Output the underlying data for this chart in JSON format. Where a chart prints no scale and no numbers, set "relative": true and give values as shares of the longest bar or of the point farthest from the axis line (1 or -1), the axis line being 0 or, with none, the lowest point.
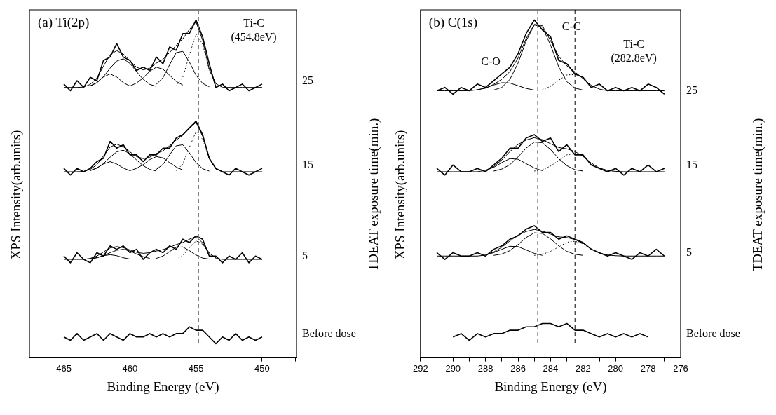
{
  "chart_data": [
    {
      "type": "line",
      "title": "(a) Ti(2p)",
      "xlabel": "Binding Energy (eV)",
      "ylabel": "XPS Intensity(arb.units)",
      "y2label": "TDEAT exposure time(min.)",
      "relative": true,
      "xlim": [
        467.6,
        447.4
      ],
      "xticks": [
        465,
        {
          "value": 462.5,
          "label": null
        },
        460,
        {
          "value": 457.5,
          "label": null
        },
        455,
        {
          "value": 452.5,
          "label": null
        },
        450,
        {
          "value": 447.5,
          "label": null
        }
      ],
      "x": [
        465,
        464.5,
        464,
        463.5,
        463,
        462.5,
        462,
        461.5,
        461,
        460.5,
        460,
        459.5,
        459,
        458.5,
        458,
        457.5,
        457,
        456.5,
        456,
        455.5,
        455,
        454.5,
        454,
        453.5,
        453,
        452.5,
        452,
        451.5,
        451,
        450.5,
        450
      ],
      "series": [
        {
          "name": "25",
          "color": "#000000",
          "values": [
            0.81,
            0.79,
            0.82,
            0.8,
            0.83,
            0.82,
            0.88,
            0.89,
            0.93,
            0.89,
            0.88,
            0.85,
            0.86,
            0.85,
            0.89,
            0.87,
            0.92,
            0.91,
            0.96,
            0.96,
            1.0,
            0.95,
            0.87,
            0.8,
            0.81,
            0.79,
            0.8,
            0.81,
            0.79,
            0.8,
            0.81
          ]
        },
        {
          "color": "#000000",
          "values": [
            0.8,
            0.8,
            0.8,
            0.801,
            0.809,
            0.828,
            0.863,
            0.897,
            0.909,
            0.899,
            0.879,
            0.86,
            0.852,
            0.857,
            0.872,
            0.883,
            0.903,
            0.925,
            0.944,
            0.972,
            0.994,
            0.94,
            0.854,
            0.811,
            0.8,
            0.8,
            0.8,
            0.8,
            0.8,
            0.8,
            0.8
          ]
        },
        {
          "color": "#000000",
          "values": [
            null,
            null,
            null,
            null,
            0.804,
            0.814,
            0.831,
            0.84,
            0.831,
            0.814,
            0.804,
            null,
            null,
            null,
            null,
            null,
            null,
            null,
            null,
            null,
            null,
            null,
            null,
            null,
            null,
            null,
            null,
            null,
            null,
            null,
            null
          ]
        },
        {
          "color": "#000000",
          "values": [
            null,
            null,
            null,
            null,
            0.805,
            0.814,
            0.832,
            0.857,
            0.878,
            0.885,
            0.871,
            0.847,
            0.824,
            0.809,
            0.803,
            null,
            null,
            null,
            null,
            null,
            null,
            null,
            null,
            null,
            null,
            null,
            null,
            null,
            null,
            null,
            null
          ]
        },
        {
          "color": "#000000",
          "values": [
            null,
            null,
            null,
            null,
            null,
            null,
            null,
            null,
            null,
            null,
            0.804,
            0.813,
            0.828,
            0.848,
            0.86,
            0.854,
            0.836,
            0.818,
            0.807,
            null,
            null,
            null,
            null,
            null,
            null,
            null,
            null,
            null,
            null,
            null,
            null
          ]
        },
        {
          "color": "#000000",
          "values": [
            null,
            null,
            null,
            null,
            null,
            null,
            null,
            null,
            null,
            null,
            null,
            null,
            null,
            null,
            0.809,
            0.829,
            0.867,
            0.903,
            0.907,
            0.875,
            0.836,
            0.812,
            0.802,
            null,
            null,
            null,
            null,
            null,
            null,
            null,
            null
          ]
        },
        {
          "color": "#000000",
          "line_style": "dotted",
          "values": [
            null,
            null,
            null,
            null,
            null,
            null,
            null,
            null,
            null,
            null,
            null,
            null,
            null,
            null,
            null,
            null,
            null,
            0.804,
            0.83,
            0.897,
            0.958,
            0.928,
            0.852,
            0.811,
            null,
            null,
            null,
            null,
            null,
            null,
            null
          ]
        },
        {
          "name": "15",
          "color": "#000000",
          "values": [
            0.56,
            0.54,
            0.56,
            0.55,
            0.56,
            0.58,
            0.59,
            0.64,
            0.62,
            0.63,
            0.6,
            0.6,
            0.58,
            0.6,
            0.6,
            0.62,
            0.62,
            0.65,
            0.66,
            0.68,
            0.7,
            0.66,
            0.59,
            0.56,
            0.55,
            0.54,
            0.56,
            0.55,
            0.54,
            0.55,
            0.56
          ]
        },
        {
          "color": "#000000",
          "values": [
            0.55,
            0.55,
            0.55,
            0.551,
            0.557,
            0.571,
            0.597,
            0.623,
            0.632,
            0.624,
            0.609,
            0.595,
            0.589,
            0.593,
            0.604,
            0.612,
            0.627,
            0.644,
            0.658,
            0.679,
            0.696,
            0.655,
            0.591,
            0.558,
            0.55,
            0.55,
            0.55,
            0.55,
            0.55,
            0.55,
            0.55
          ]
        },
        {
          "color": "#000000",
          "values": [
            null,
            null,
            null,
            null,
            0.553,
            0.561,
            0.573,
            0.58,
            0.573,
            0.561,
            0.553,
            null,
            null,
            null,
            null,
            null,
            null,
            null,
            null,
            null,
            null,
            null,
            null,
            null,
            null,
            null,
            null,
            null,
            null,
            null,
            null
          ]
        },
        {
          "color": "#000000",
          "values": [
            null,
            null,
            null,
            null,
            0.554,
            0.561,
            0.574,
            0.593,
            0.609,
            0.614,
            0.603,
            0.585,
            0.568,
            0.557,
            0.552,
            null,
            null,
            null,
            null,
            null,
            null,
            null,
            null,
            null,
            null,
            null,
            null,
            null,
            null,
            null,
            null
          ]
        },
        {
          "color": "#000000",
          "values": [
            null,
            null,
            null,
            null,
            null,
            null,
            null,
            null,
            null,
            null,
            0.553,
            0.56,
            0.571,
            0.586,
            0.595,
            0.591,
            0.577,
            0.564,
            0.555,
            null,
            null,
            null,
            null,
            null,
            null,
            null,
            null,
            null,
            null,
            null,
            null
          ]
        },
        {
          "color": "#000000",
          "values": [
            null,
            null,
            null,
            null,
            null,
            null,
            null,
            null,
            null,
            null,
            null,
            null,
            null,
            null,
            0.557,
            0.572,
            0.6,
            0.627,
            0.63,
            0.606,
            0.577,
            0.559,
            0.552,
            null,
            null,
            null,
            null,
            null,
            null,
            null,
            null
          ]
        },
        {
          "color": "#000000",
          "line_style": "dotted",
          "values": [
            null,
            null,
            null,
            null,
            null,
            null,
            null,
            null,
            null,
            null,
            null,
            null,
            null,
            null,
            null,
            null,
            null,
            0.553,
            0.573,
            0.623,
            0.669,
            0.646,
            0.589,
            0.558,
            null,
            null,
            null,
            null,
            null,
            null,
            null
          ]
        },
        {
          "name": "5",
          "color": "#000000",
          "values": [
            0.3,
            0.28,
            0.31,
            0.29,
            0.28,
            0.31,
            0.3,
            0.33,
            0.32,
            0.33,
            0.31,
            0.32,
            0.29,
            0.31,
            0.32,
            0.31,
            0.33,
            0.32,
            0.35,
            0.34,
            0.36,
            0.35,
            0.3,
            0.3,
            0.28,
            0.3,
            0.29,
            0.31,
            0.28,
            0.3,
            0.29
          ]
        },
        {
          "color": "#000000",
          "values": [
            0.29,
            0.29,
            0.29,
            0.29,
            0.293,
            0.3,
            0.312,
            0.324,
            0.328,
            0.325,
            0.318,
            0.311,
            0.308,
            0.31,
            0.315,
            0.319,
            0.326,
            0.334,
            0.34,
            0.35,
            0.358,
            0.339,
            0.309,
            0.294,
            0.29,
            0.29,
            0.29,
            0.29,
            0.29,
            0.29,
            0.29
          ]
        },
        {
          "color": "#000000",
          "values": [
            null,
            null,
            null,
            null,
            0.291,
            0.295,
            0.301,
            0.304,
            0.301,
            0.295,
            0.291,
            null,
            null,
            null,
            null,
            null,
            null,
            null,
            null,
            null,
            null,
            null,
            null,
            null,
            null,
            null,
            null,
            null,
            null,
            null,
            null
          ]
        },
        {
          "color": "#000000",
          "values": [
            null,
            null,
            null,
            null,
            0.292,
            0.295,
            0.301,
            0.31,
            0.317,
            0.32,
            0.315,
            0.306,
            0.298,
            0.293,
            null,
            null,
            null,
            null,
            null,
            null,
            null,
            null,
            null,
            null,
            null,
            null,
            null,
            null,
            null,
            null,
            null
          ]
        },
        {
          "color": "#000000",
          "values": [
            null,
            null,
            null,
            null,
            null,
            null,
            null,
            null,
            null,
            null,
            null,
            null,
            null,
            null,
            0.293,
            0.3,
            0.313,
            0.326,
            0.327,
            0.316,
            0.303,
            0.294,
            0.291,
            null,
            null,
            null,
            null,
            null,
            null,
            null,
            null
          ]
        },
        {
          "color": "#000000",
          "line_style": "dotted",
          "values": [
            null,
            null,
            null,
            null,
            null,
            null,
            null,
            null,
            null,
            null,
            null,
            null,
            null,
            null,
            null,
            null,
            null,
            0.291,
            0.301,
            0.324,
            0.345,
            0.335,
            0.308,
            0.294,
            null,
            null,
            null,
            null,
            null,
            null,
            null
          ]
        },
        {
          "name": "Before dose",
          "color": "#000000",
          "values": [
            0.06,
            0.05,
            0.07,
            0.05,
            0.06,
            0.07,
            0.05,
            0.07,
            0.06,
            0.05,
            0.07,
            0.06,
            0.06,
            0.07,
            0.06,
            0.07,
            0.06,
            0.07,
            0.07,
            0.09,
            0.08,
            0.08,
            0.06,
            0.04,
            0.06,
            0.05,
            0.07,
            0.05,
            0.06,
            0.05,
            0.06
          ]
        }
      ],
      "ref_lines": [
        {
          "axis": "x",
          "value": 454.8,
          "label": null,
          "color": "#777777",
          "line_style": "dashed"
        }
      ],
      "annotations": [
        "Ti-C\n(454.8eV)"
      ]
    },
    {
      "type": "line",
      "title": "(b) C(1s)",
      "xlabel": "Binding Energy (eV)",
      "ylabel": "XPS Intensity(arb.units)",
      "y2label": "TDEAT exposure time(min.)",
      "relative": true,
      "xlim": [
        292,
        276
      ],
      "xticks": [
        292,
        {
          "value": 291,
          "label": null
        },
        290,
        {
          "value": 289,
          "label": null
        },
        288,
        {
          "value": 287,
          "label": null
        },
        286,
        {
          "value": 285,
          "label": null
        },
        284,
        {
          "value": 283,
          "label": null
        },
        282,
        {
          "value": 281,
          "label": null
        },
        280,
        {
          "value": 279,
          "label": null
        },
        278,
        {
          "value": 277,
          "label": null
        },
        276
      ],
      "x": [
        291,
        290.5,
        290,
        289.5,
        289,
        288.5,
        288,
        287.5,
        287,
        286.5,
        286,
        285.5,
        285,
        284.5,
        284,
        283.5,
        283,
        282.5,
        282,
        281.5,
        281,
        280.5,
        280,
        279.5,
        279,
        278.5,
        278,
        277.5,
        277
      ],
      "series": [
        {
          "name": "25",
          "color": "#000000",
          "values": [
            0.79,
            0.8,
            0.78,
            0.8,
            0.79,
            0.81,
            0.8,
            0.82,
            0.84,
            0.86,
            0.9,
            0.96,
            1.0,
            0.97,
            0.95,
            0.88,
            0.87,
            0.84,
            0.83,
            0.8,
            0.81,
            0.79,
            0.8,
            0.79,
            0.8,
            0.79,
            0.81,
            0.8,
            0.78
          ]
        },
        {
          "color": "#000000",
          "values": [
            0.79,
            0.79,
            0.79,
            0.79,
            0.79,
            0.793,
            0.798,
            0.809,
            0.824,
            0.847,
            0.887,
            0.945,
            0.987,
            0.983,
            0.938,
            0.892,
            0.864,
            0.846,
            0.826,
            0.806,
            0.795,
            0.79,
            0.79,
            0.79,
            0.79,
            0.79,
            0.79,
            0.79,
            0.79
          ]
        },
        {
          "color": "#000000",
          "values": [
            null,
            null,
            null,
            null,
            null,
            null,
            null,
            0.792,
            0.8,
            0.824,
            0.872,
            0.938,
            0.985,
            0.979,
            0.925,
            0.861,
            0.817,
            0.798,
            0.792,
            null,
            null,
            null,
            null,
            null,
            null,
            null,
            null,
            null,
            null
          ]
        },
        {
          "color": "#000000",
          "values": [
            null,
            null,
            null,
            null,
            null,
            0.793,
            0.798,
            0.807,
            0.814,
            0.813,
            0.805,
            0.797,
            0.792,
            null,
            null,
            null,
            null,
            null,
            null,
            null,
            null,
            null,
            null,
            null,
            null,
            null,
            null,
            null,
            null
          ]
        },
        {
          "color": "#000000",
          "line_style": "dotted",
          "values": [
            null,
            null,
            null,
            null,
            null,
            null,
            null,
            null,
            null,
            null,
            null,
            null,
            null,
            0.794,
            0.803,
            0.821,
            0.837,
            0.838,
            0.824,
            0.806,
            0.795,
            null,
            null,
            null,
            null,
            null,
            null,
            null,
            null
          ]
        },
        {
          "name": "15",
          "color": "#000000",
          "values": [
            0.56,
            0.54,
            0.57,
            0.55,
            0.55,
            0.56,
            0.55,
            0.57,
            0.59,
            0.62,
            0.62,
            0.65,
            0.66,
            0.64,
            0.65,
            0.61,
            0.63,
            0.6,
            0.6,
            0.57,
            0.56,
            0.55,
            0.56,
            0.54,
            0.56,
            0.55,
            0.57,
            0.55,
            0.56
          ]
        },
        {
          "color": "#000000",
          "values": [
            0.55,
            0.55,
            0.55,
            0.55,
            0.55,
            0.55,
            0.554,
            0.565,
            0.585,
            0.61,
            0.631,
            0.644,
            0.651,
            0.645,
            0.633,
            0.622,
            0.618,
            0.61,
            0.596,
            0.576,
            0.561,
            0.554,
            0.551,
            0.55,
            0.55,
            0.55,
            0.55,
            0.55,
            0.55
          ]
        },
        {
          "color": "#000000",
          "values": [
            null,
            null,
            null,
            null,
            null,
            null,
            null,
            0.552,
            0.558,
            0.571,
            0.594,
            0.62,
            0.638,
            0.636,
            0.616,
            0.589,
            0.568,
            0.556,
            0.552,
            null,
            null,
            null,
            null,
            null,
            null,
            null,
            null,
            null,
            null
          ]
        },
        {
          "color": "#000000",
          "values": [
            null,
            null,
            null,
            null,
            null,
            null,
            0.554,
            0.563,
            0.577,
            0.589,
            0.587,
            0.574,
            0.561,
            0.553,
            null,
            null,
            null,
            null,
            null,
            null,
            null,
            null,
            null,
            null,
            null,
            null,
            null,
            null,
            null
          ]
        },
        {
          "color": "#000000",
          "line_style": "dotted",
          "values": [
            null,
            null,
            null,
            null,
            null,
            null,
            null,
            null,
            null,
            null,
            null,
            null,
            0.552,
            0.556,
            0.567,
            0.583,
            0.6,
            0.604,
            0.594,
            0.576,
            0.561,
            0.554,
            0.551,
            null,
            null,
            null,
            null,
            null,
            null
          ]
        },
        {
          "name": "5",
          "color": "#000000",
          "values": [
            0.31,
            0.29,
            0.31,
            0.3,
            0.3,
            0.31,
            0.3,
            0.32,
            0.33,
            0.35,
            0.36,
            0.38,
            0.39,
            0.37,
            0.37,
            0.35,
            0.36,
            0.35,
            0.34,
            0.32,
            0.31,
            0.3,
            0.31,
            0.3,
            0.29,
            0.31,
            0.3,
            0.32,
            0.3
          ]
        },
        {
          "color": "#000000",
          "values": [
            0.3,
            0.3,
            0.3,
            0.3,
            0.3,
            0.3,
            0.303,
            0.312,
            0.326,
            0.345,
            0.362,
            0.373,
            0.379,
            0.374,
            0.365,
            0.357,
            0.355,
            0.349,
            0.338,
            0.321,
            0.309,
            0.303,
            0.301,
            0.3,
            0.3,
            0.3,
            0.3,
            0.3,
            0.3
          ]
        },
        {
          "color": "#000000",
          "values": [
            null,
            null,
            null,
            null,
            null,
            null,
            null,
            0.302,
            0.306,
            0.316,
            0.334,
            0.355,
            0.369,
            0.367,
            0.351,
            0.33,
            0.314,
            0.305,
            0.302,
            null,
            null,
            null,
            null,
            null,
            null,
            null,
            null,
            null,
            null
          ]
        },
        {
          "color": "#000000",
          "values": [
            null,
            null,
            null,
            null,
            null,
            null,
            0.303,
            0.31,
            0.32,
            0.329,
            0.328,
            0.318,
            0.308,
            0.302,
            null,
            null,
            null,
            null,
            null,
            null,
            null,
            null,
            null,
            null,
            null,
            null,
            null,
            null,
            null
          ]
        },
        {
          "color": "#000000",
          "line_style": "dotted",
          "values": [
            null,
            null,
            null,
            null,
            null,
            null,
            null,
            null,
            null,
            null,
            null,
            null,
            0.302,
            0.305,
            0.314,
            0.327,
            0.341,
            0.344,
            0.336,
            0.321,
            0.309,
            0.303,
            0.301,
            null,
            null,
            null,
            null,
            null,
            null
          ]
        },
        {
          "name": "Before dose",
          "color": "#000000",
          "values": [
            null,
            null,
            0.06,
            0.07,
            0.05,
            0.07,
            0.06,
            0.07,
            0.07,
            0.08,
            0.08,
            0.09,
            0.09,
            0.1,
            0.1,
            0.09,
            0.1,
            0.08,
            0.08,
            0.07,
            0.06,
            0.07,
            0.06,
            0.07,
            0.06,
            0.07,
            0.06,
            null,
            null
          ]
        }
      ],
      "ref_lines": [
        {
          "axis": "x",
          "value": 284.8,
          "label": null,
          "color": "#777777",
          "line_style": "dashed"
        },
        {
          "axis": "x",
          "value": 282.5,
          "label": null,
          "color": "#000000",
          "line_style": "dashed"
        }
      ],
      "annotations": [
        "C-O",
        "C-C",
        "Ti-C\n(282.8eV)"
      ]
    }
  ]
}
